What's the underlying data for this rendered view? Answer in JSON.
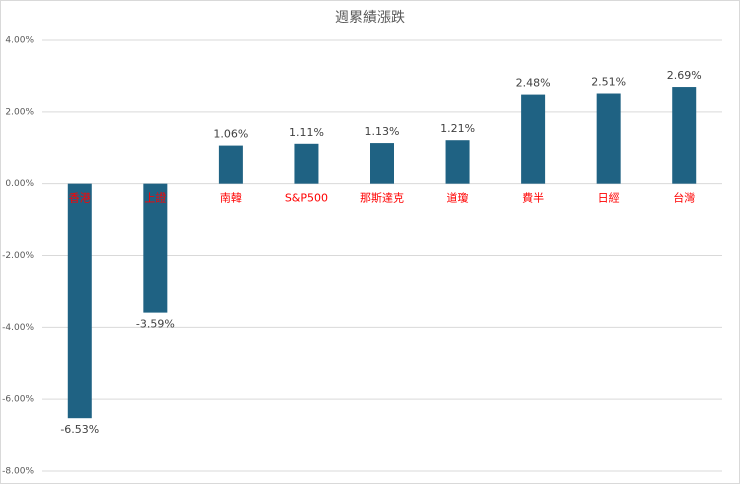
{
  "chart_data": {
    "type": "bar",
    "title": "週累績漲跌",
    "categories": [
      "香港",
      "上證",
      "南韓",
      "S&P500",
      "那斯達克",
      "道瓊",
      "費半",
      "日經",
      "台灣"
    ],
    "values": [
      -6.53,
      -3.59,
      1.06,
      1.11,
      1.13,
      1.21,
      2.48,
      2.51,
      2.69
    ],
    "value_labels": [
      "-6.53%",
      "-3.59%",
      "1.06%",
      "1.11%",
      "1.13%",
      "1.21%",
      "2.48%",
      "2.51%",
      "2.69%"
    ],
    "color": "#1f6283",
    "category_color": "#ff0000",
    "ylim": [
      -8,
      4
    ],
    "yticks": [
      {
        "value": -8,
        "label": "-8.00%"
      },
      {
        "value": -6,
        "label": "-6.00%"
      },
      {
        "value": -4,
        "label": "-4.00%"
      },
      {
        "value": -2,
        "label": "-2.00%"
      },
      {
        "value": 0,
        "label": "0.00%"
      },
      {
        "value": 2,
        "label": "2.00%"
      },
      {
        "value": 4,
        "label": "4.00%"
      }
    ],
    "grid": true
  }
}
